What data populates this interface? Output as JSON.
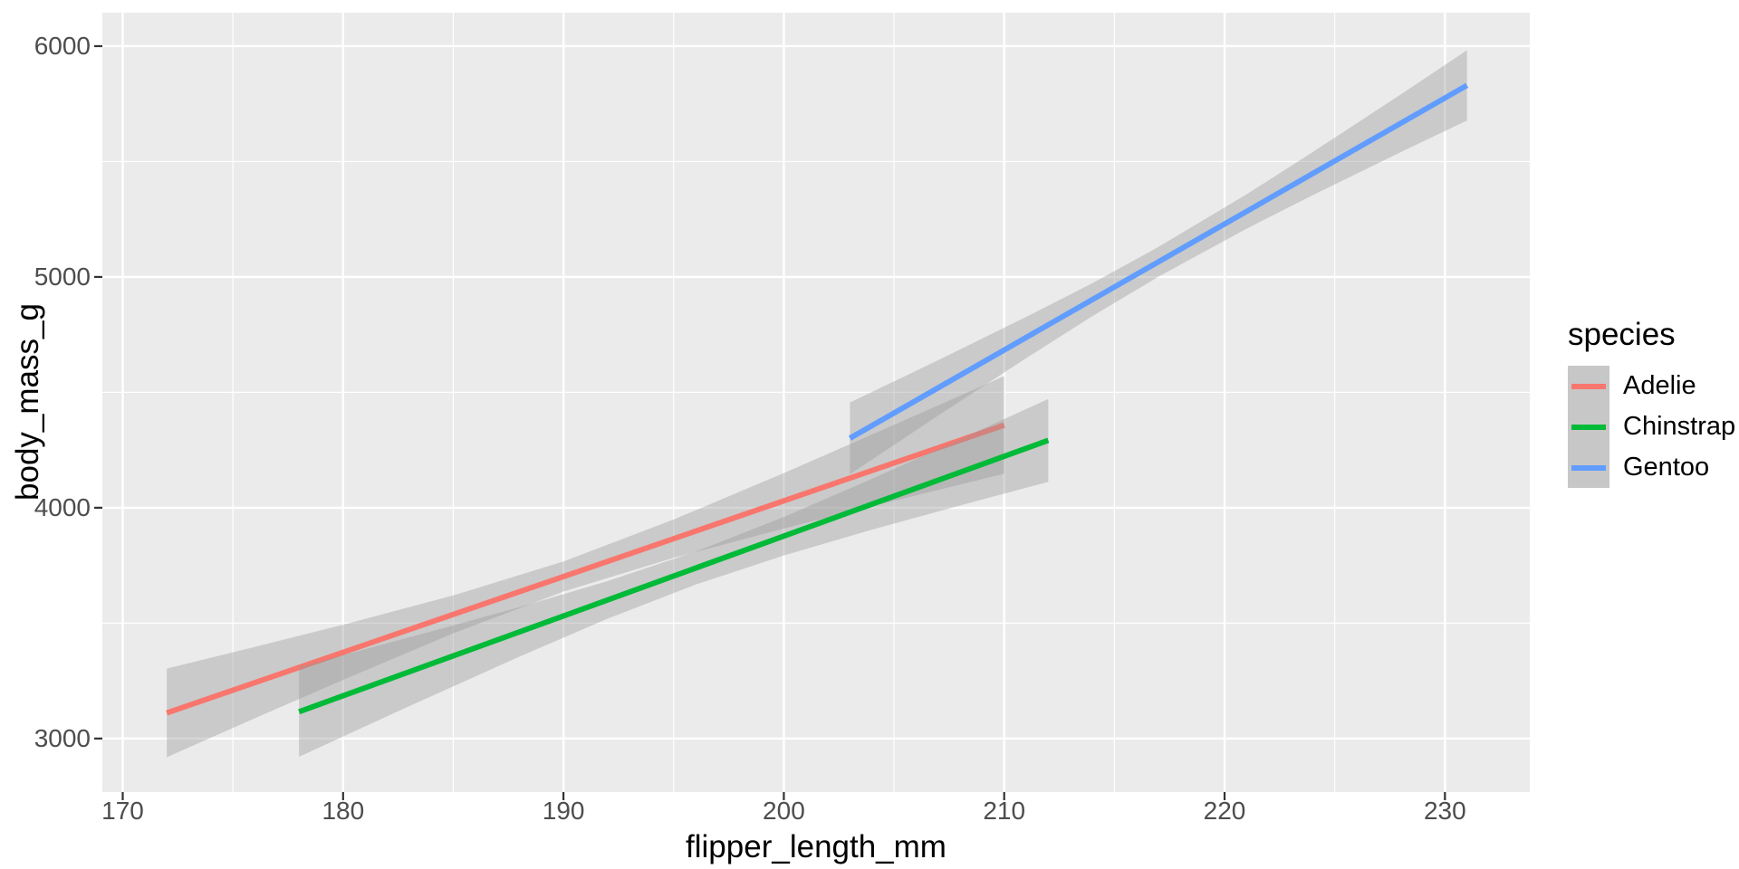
{
  "chart_data": {
    "type": "line",
    "title": "",
    "xlabel": "flipper_length_mm",
    "ylabel": "body_mass_g",
    "xlim": [
      169.075,
      233.85
    ],
    "ylim": [
      2768,
      6145
    ],
    "x_ticks": [
      170,
      180,
      190,
      200,
      210,
      220,
      230
    ],
    "y_ticks": [
      3000,
      4000,
      5000,
      6000
    ],
    "x_minor_ticks": [
      175,
      185,
      195,
      205,
      215,
      225
    ],
    "y_minor_ticks": [
      3500,
      4500,
      5500
    ],
    "grid": "on",
    "panel_background": "#EBEBEB",
    "grid_color": "#FFFFFF",
    "tick_color": "#333333",
    "tick_text_color": "#4D4D4D",
    "ribbon_color": "#999999",
    "ribbon_opacity": 0.4,
    "legend_title": "species",
    "legend_position": "right",
    "legend_key_fill": "#C7C7C7",
    "series": [
      {
        "name": "Adelie",
        "color": "#F8766D",
        "regression": {
          "x": [
            172,
            210
          ],
          "y": [
            3111,
            4358
          ]
        },
        "ribbon": {
          "x": [
            172,
            176,
            180,
            185,
            190,
            195,
            200,
            205,
            210
          ],
          "lower": [
            2919,
            3088,
            3254,
            3456,
            3637,
            3783,
            3910,
            4030,
            4147
          ],
          "upper": [
            3303,
            3397,
            3493,
            3620,
            3767,
            3949,
            4150,
            4359,
            4570
          ]
        }
      },
      {
        "name": "Chinstrap",
        "color": "#00BA38",
        "regression": {
          "x": [
            178,
            212
          ],
          "y": [
            3116,
            4292
          ]
        },
        "ribbon": {
          "x": [
            178,
            183,
            188,
            192,
            196,
            200,
            204,
            208,
            212
          ],
          "lower": [
            2921,
            3140,
            3355,
            3519,
            3667,
            3793,
            3905,
            4010,
            4112
          ],
          "upper": [
            3311,
            3438,
            3569,
            3682,
            3810,
            3960,
            4125,
            4297,
            4471
          ]
        }
      },
      {
        "name": "Gentoo",
        "color": "#619CFF",
        "regression": {
          "x": [
            203,
            231
          ],
          "y": [
            4301,
            5830
          ]
        },
        "ribbon": {
          "x": [
            203,
            207,
            211,
            214,
            217,
            221,
            224,
            228,
            231
          ],
          "lower": [
            4145,
            4399,
            4648,
            4830,
            5001,
            5209,
            5354,
            5541,
            5678
          ],
          "upper": [
            4456,
            4639,
            4827,
            4973,
            5130,
            5358,
            5541,
            5791,
            5982
          ]
        }
      }
    ]
  }
}
